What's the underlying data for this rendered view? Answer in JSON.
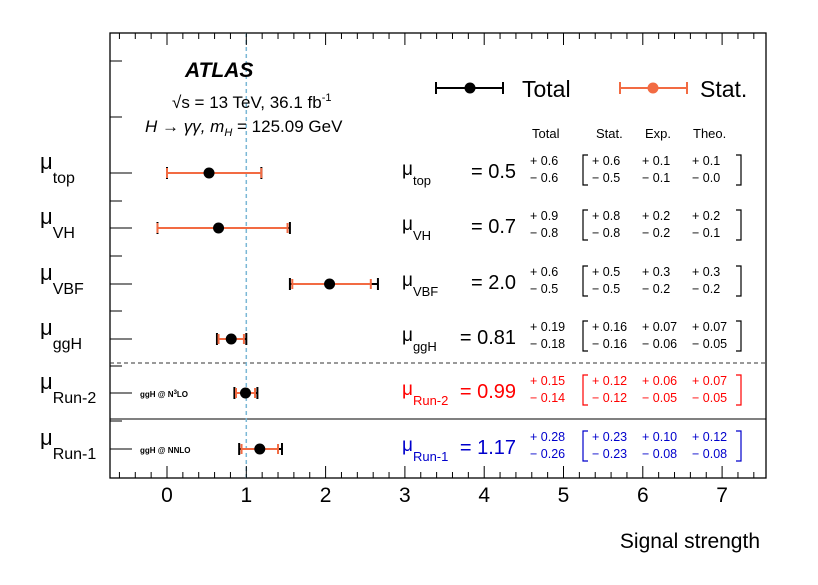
{
  "chart_data": {
    "type": "scatter",
    "experiment": "ATLAS",
    "energy_text": "√s = 13 TeV, 36.1 fb",
    "lumi_exponent": "-1",
    "process_text": "H → γγ, m",
    "process_sub": "H",
    "mass_text": " = 125.09 GeV",
    "xlabel": "Signal strength",
    "xlim": [
      -0.7,
      7.4
    ],
    "xticks": [
      "0",
      "1",
      "2",
      "3",
      "4",
      "5",
      "6",
      "7"
    ],
    "reference_line": 1,
    "legend": {
      "total": "Total",
      "stat": "Stat."
    },
    "column_headers": {
      "total": "Total",
      "stat": "Stat.",
      "exp": "Exp.",
      "theo": "Theo."
    },
    "colors": {
      "total": "#000000",
      "stat": "#f26b43",
      "run2": "#ff0000",
      "run1": "#0000cc",
      "reference": "#7bb8d6"
    },
    "series": [
      {
        "label_sym": "μ",
        "label_sub": "top",
        "value": 0.5,
        "value_text": "0.5",
        "total_up": "+ 0.6",
        "total_dn": "− 0.6",
        "stat_up": "+ 0.6",
        "stat_dn": "− 0.5",
        "exp_up": "+ 0.1",
        "exp_dn": "− 0.1",
        "theo_up": "+ 0.1",
        "theo_dn": "− 0.0",
        "plot_center": 0.53,
        "total_lo": 0.0,
        "total_hi": 1.19,
        "stat_lo": 0.0,
        "stat_hi": 1.19,
        "note": "",
        "style": "normal"
      },
      {
        "label_sym": "μ",
        "label_sub": "VH",
        "value": 0.7,
        "value_text": "0.7",
        "total_up": "+ 0.9",
        "total_dn": "− 0.8",
        "stat_up": "+ 0.8",
        "stat_dn": "− 0.8",
        "exp_up": "+ 0.2",
        "exp_dn": "− 0.2",
        "theo_up": "+ 0.2",
        "theo_dn": "− 0.1",
        "plot_center": 0.65,
        "total_lo": -0.12,
        "total_hi": 1.55,
        "stat_lo": -0.12,
        "stat_hi": 1.52,
        "note": "",
        "style": "normal"
      },
      {
        "label_sym": "μ",
        "label_sub": "VBF",
        "value": 2.0,
        "value_text": "2.0",
        "total_up": "+ 0.6",
        "total_dn": "− 0.5",
        "stat_up": "+ 0.5",
        "stat_dn": "− 0.5",
        "exp_up": "+ 0.3",
        "exp_dn": "− 0.2",
        "theo_up": "+ 0.3",
        "theo_dn": "− 0.2",
        "plot_center": 2.05,
        "total_lo": 1.55,
        "total_hi": 2.66,
        "stat_lo": 1.58,
        "stat_hi": 2.57,
        "note": "",
        "style": "normal"
      },
      {
        "label_sym": "μ",
        "label_sub": "ggH",
        "value": 0.81,
        "value_text": "0.81",
        "total_up": "+ 0.19",
        "total_dn": "− 0.18",
        "stat_up": "+ 0.16",
        "stat_dn": "− 0.16",
        "exp_up": "+ 0.07",
        "exp_dn": "− 0.06",
        "theo_up": "+ 0.07",
        "theo_dn": "− 0.05",
        "plot_center": 0.81,
        "total_lo": 0.63,
        "total_hi": 1.0,
        "stat_lo": 0.65,
        "stat_hi": 0.97,
        "note": "",
        "style": "normal"
      },
      {
        "label_sym": "μ",
        "label_sub": "Run-2",
        "value": 0.99,
        "value_text": "0.99",
        "total_up": "+ 0.15",
        "total_dn": "− 0.14",
        "stat_up": "+ 0.12",
        "stat_dn": "− 0.12",
        "exp_up": "+ 0.06",
        "exp_dn": "− 0.05",
        "theo_up": "+ 0.07",
        "theo_dn": "− 0.05",
        "plot_center": 0.99,
        "total_lo": 0.85,
        "total_hi": 1.14,
        "stat_lo": 0.87,
        "stat_hi": 1.11,
        "note": "ggH @ N",
        "note_sup": "3",
        "note_tail": "LO",
        "style": "run2"
      },
      {
        "label_sym": "μ",
        "label_sub": "Run-1",
        "value": 1.17,
        "value_text": "1.17",
        "total_up": "+ 0.28",
        "total_dn": "− 0.26",
        "stat_up": "+ 0.23",
        "stat_dn": "− 0.23",
        "exp_up": "+ 0.10",
        "exp_dn": "− 0.08",
        "theo_up": "+ 0.12",
        "theo_dn": "− 0.08",
        "plot_center": 1.17,
        "total_lo": 0.91,
        "total_hi": 1.45,
        "stat_lo": 0.94,
        "stat_hi": 1.4,
        "note": "ggH @ NNLO",
        "note_sup": "",
        "note_tail": "",
        "style": "run1"
      }
    ]
  }
}
